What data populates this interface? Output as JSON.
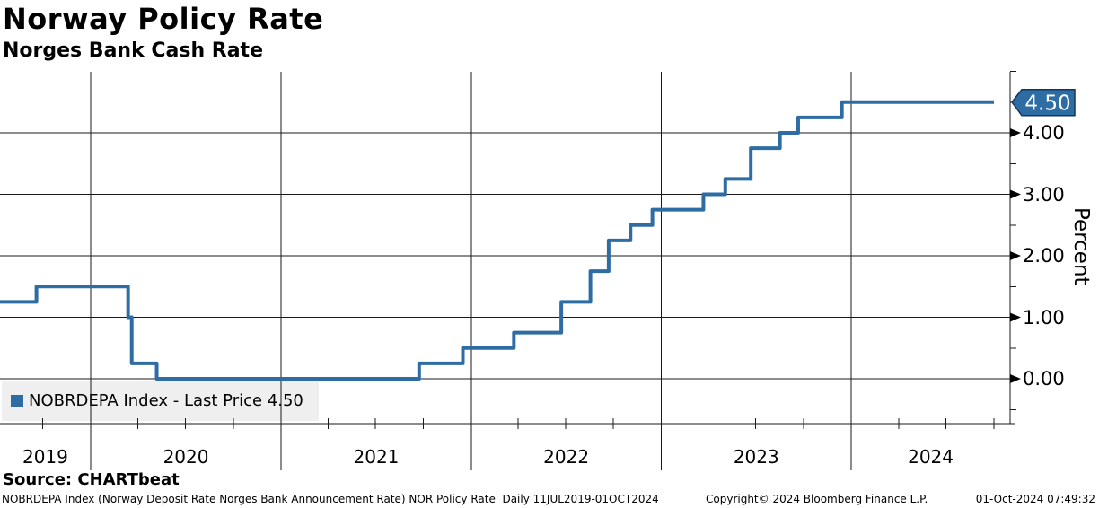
{
  "header": {
    "title": "Norway Policy Rate",
    "subtitle": "Norges Bank Cash Rate"
  },
  "legend": {
    "label": "NOBRDEPA Index - Last Price 4.50"
  },
  "badge": {
    "label": "4.50"
  },
  "axis": {
    "unit_label": "Percent",
    "y_tick_labels": [
      "4.00",
      "3.00",
      "2.00",
      "1.00",
      "0.00"
    ],
    "x_tick_labels": [
      "2019",
      "2020",
      "2021",
      "2022",
      "2023",
      "2024"
    ]
  },
  "source_label": "Source: CHARTbeat",
  "footer": {
    "description": "NOBRDEPA Index (Norway Deposit Rate Norges Bank Announcement Rate) NOR Policy Rate  Daily 11JUL2019-01OCT2024",
    "copyright": "Copyright© 2024 Bloomberg Finance L.P.",
    "timestamp": "01-Oct-2024 07:49:32"
  },
  "colors": {
    "line": "#2e6da4",
    "badge_fill": "#2e6da4",
    "badge_border": "#12365c",
    "grid": "#1a1a1a",
    "legend_bg": "#efefef"
  },
  "chart_data": {
    "type": "line",
    "style": "step-after",
    "title": "Norway Policy Rate",
    "subtitle": "Norges Bank Cash Rate",
    "series_name": "NOBRDEPA Index",
    "last_price": 4.5,
    "ylabel": "Percent",
    "ylim": [
      -0.7,
      5.0
    ],
    "grid": true,
    "y_major_ticks": [
      0,
      1,
      2,
      3,
      4
    ],
    "y_minor_ticks": [
      5.0,
      4.5,
      3.5,
      2.5,
      1.5,
      0.5,
      -0.5
    ],
    "x_range": [
      "2019-07-11",
      "2024-10-01"
    ],
    "x_tick_years": [
      2019,
      2020,
      2021,
      2022,
      2023,
      2024
    ],
    "steps": [
      {
        "date": "2019-07-11",
        "rate": 1.25
      },
      {
        "date": "2019-09-19",
        "rate": 1.5
      },
      {
        "date": "2020-03-13",
        "rate": 1.0
      },
      {
        "date": "2020-03-20",
        "rate": 0.25
      },
      {
        "date": "2020-05-07",
        "rate": 0.0
      },
      {
        "date": "2021-09-23",
        "rate": 0.25
      },
      {
        "date": "2021-12-16",
        "rate": 0.5
      },
      {
        "date": "2022-03-24",
        "rate": 0.75
      },
      {
        "date": "2022-06-23",
        "rate": 1.25
      },
      {
        "date": "2022-08-18",
        "rate": 1.75
      },
      {
        "date": "2022-09-22",
        "rate": 2.25
      },
      {
        "date": "2022-11-03",
        "rate": 2.5
      },
      {
        "date": "2022-12-15",
        "rate": 2.75
      },
      {
        "date": "2023-03-23",
        "rate": 3.0
      },
      {
        "date": "2023-05-04",
        "rate": 3.25
      },
      {
        "date": "2023-06-22",
        "rate": 3.75
      },
      {
        "date": "2023-08-17",
        "rate": 4.0
      },
      {
        "date": "2023-09-21",
        "rate": 4.25
      },
      {
        "date": "2023-12-14",
        "rate": 4.5
      }
    ]
  }
}
